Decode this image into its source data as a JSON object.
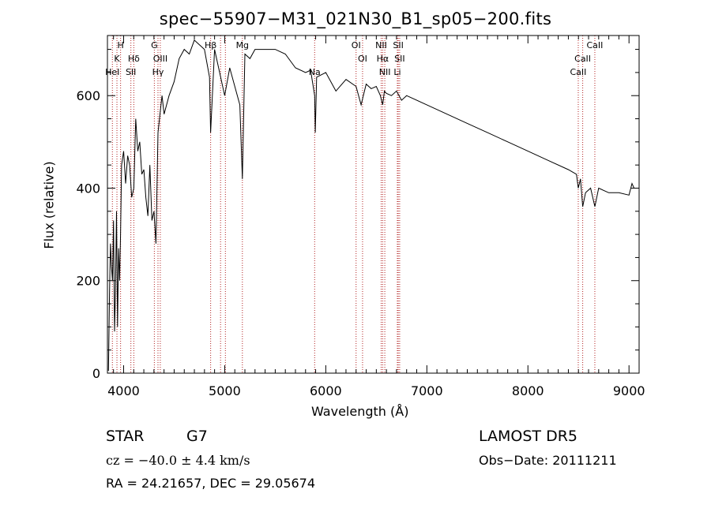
{
  "chart_data": {
    "type": "line",
    "title": "spec−55907−M31_021N30_B1_sp05−200.fits",
    "xlabel": "Wavelength (Å)",
    "ylabel": "Flux (relative)",
    "xlim": [
      3840,
      9100
    ],
    "ylim": [
      0,
      730
    ],
    "x_ticks": [
      4000,
      5000,
      6000,
      7000,
      8000,
      9000
    ],
    "y_ticks": [
      0,
      200,
      400,
      600
    ],
    "grid": false,
    "line_color": "#000000",
    "marker_line_color": "#b22222",
    "series": [
      {
        "x": [
          3850,
          3860,
          3870,
          3880,
          3890,
          3900,
          3910,
          3920,
          3930,
          3940,
          3950,
          3960,
          3970,
          3980,
          4000,
          4020,
          4040,
          4060,
          4080,
          4101,
          4120,
          4140,
          4160,
          4180,
          4200,
          4220,
          4240,
          4260,
          4280,
          4300,
          4320,
          4340,
          4360,
          4380,
          4400,
          4450,
          4500,
          4550,
          4600,
          4650,
          4700,
          4750,
          4800,
          4850,
          4861,
          4900,
          4950,
          5000,
          5050,
          5100,
          5150,
          5175,
          5200,
          5250,
          5300,
          5400,
          5500,
          5600,
          5700,
          5800,
          5850,
          5890,
          5896,
          5910,
          6000,
          6100,
          6200,
          6300,
          6350,
          6400,
          6450,
          6500,
          6540,
          6563,
          6580,
          6600,
          6650,
          6700,
          6750,
          6800,
          7000,
          7200,
          7400,
          7600,
          7800,
          8000,
          8200,
          8400,
          8480,
          8498,
          8520,
          8542,
          8570,
          8620,
          8662,
          8700,
          8800,
          8900,
          9000,
          9030,
          9050
        ],
        "y": [
          5,
          170,
          280,
          230,
          200,
          330,
          90,
          180,
          350,
          100,
          270,
          200,
          300,
          450,
          480,
          410,
          470,
          450,
          380,
          400,
          550,
          480,
          500,
          430,
          440,
          380,
          340,
          450,
          330,
          350,
          280,
          520,
          560,
          600,
          560,
          600,
          630,
          680,
          700,
          690,
          720,
          710,
          700,
          640,
          520,
          700,
          650,
          600,
          660,
          620,
          580,
          420,
          690,
          680,
          700,
          700,
          700,
          690,
          660,
          650,
          655,
          600,
          520,
          640,
          650,
          610,
          635,
          620,
          580,
          625,
          615,
          620,
          600,
          580,
          610,
          605,
          600,
          610,
          590,
          600,
          580,
          560,
          540,
          520,
          500,
          480,
          460,
          440,
          430,
          400,
          420,
          360,
          390,
          400,
          360,
          400,
          390,
          390,
          385,
          410,
          400
        ]
      }
    ],
    "line_markers": [
      {
        "x": 3889,
        "label": "HeI",
        "row": 3
      },
      {
        "x": 3934,
        "label": "K",
        "row": 2
      },
      {
        "x": 3970,
        "label": "H",
        "row": 1
      },
      {
        "x": 4101,
        "label": "Hδ",
        "row": 2
      },
      {
        "x": 4072,
        "label": "SII",
        "row": 3
      },
      {
        "x": 4304,
        "label": "G",
        "row": 1
      },
      {
        "x": 4363,
        "label": "OIII",
        "row": 2
      },
      {
        "x": 4340,
        "label": "Hγ",
        "row": 3
      },
      {
        "x": 4861,
        "label": "Hβ",
        "row": 1
      },
      {
        "x": 4959,
        "label": "",
        "row": 0
      },
      {
        "x": 5007,
        "label": "",
        "row": 0
      },
      {
        "x": 5175,
        "label": "Mg",
        "row": 1
      },
      {
        "x": 5890,
        "label": "Na",
        "row": 3
      },
      {
        "x": 6300,
        "label": "OI",
        "row": 1
      },
      {
        "x": 6364,
        "label": "OI",
        "row": 2
      },
      {
        "x": 6548,
        "label": "NII",
        "row": 1
      },
      {
        "x": 6563,
        "label": "Hα",
        "row": 2
      },
      {
        "x": 6584,
        "label": "NII",
        "row": 3
      },
      {
        "x": 6717,
        "label": "SII",
        "row": 1
      },
      {
        "x": 6731,
        "label": "SII",
        "row": 2
      },
      {
        "x": 6708,
        "label": "Li",
        "row": 3
      },
      {
        "x": 8498,
        "label": "CaII",
        "row": 3
      },
      {
        "x": 8542,
        "label": "CaII",
        "row": 2
      },
      {
        "x": 8662,
        "label": "CaII",
        "row": 1
      }
    ]
  },
  "info": {
    "class_label": "STAR",
    "subclass": "G7",
    "redshift_text": "cz = −40.0 ± 4.4 km/s",
    "coords_text": "RA =  24.21657, DEC =  29.05674",
    "survey": "LAMOST DR5",
    "obs_date": "Obs−Date: 20111211"
  }
}
